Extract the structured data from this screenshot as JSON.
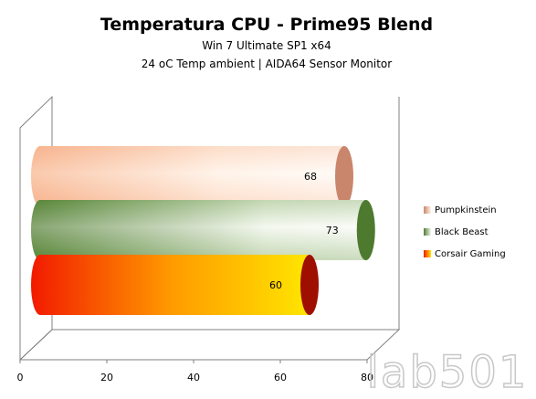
{
  "chart_data": {
    "type": "bar",
    "orientation": "horizontal",
    "style": "3d-cylinder",
    "title": "Temperatura CPU - Prime95 Blend",
    "subtitle_lines": [
      "Win 7 Ultimate SP1  x64",
      "24 oC Temp ambient | AIDA64 Sensor Monitor"
    ],
    "xlim": [
      0,
      80
    ],
    "x_ticks": [
      "0",
      "20",
      "40",
      "60",
      "80"
    ],
    "grid": false,
    "legend_position": "right",
    "series": [
      {
        "name": "Pumpkinstein",
        "value": 68,
        "label": "68",
        "color_main": "#f7b38d",
        "color_light": "#fff4ea",
        "color_dark": "#c9866c"
      },
      {
        "name": "Black Beast",
        "value": 73,
        "label": "73",
        "color_main": "#6a9a44",
        "color_light": "#f4f8ef",
        "color_dark": "#4d7a2f"
      },
      {
        "name": "Corsair Gaming",
        "value": 60,
        "label": "60",
        "color_main": "#f21a00",
        "color_light": "#ffe600",
        "color_dark": "#9e0f00"
      }
    ],
    "watermark": "lab501"
  }
}
